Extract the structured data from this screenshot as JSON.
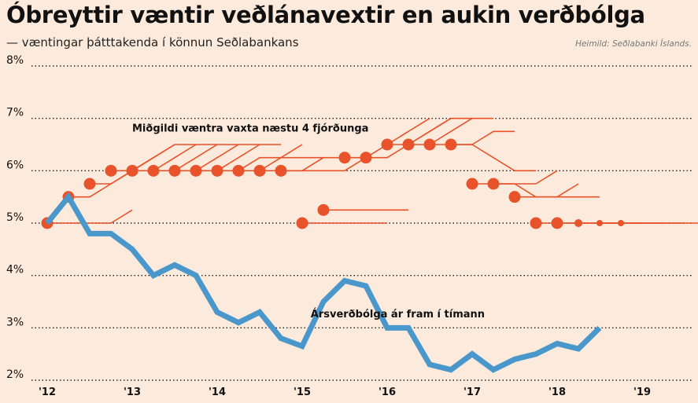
{
  "header": {
    "title": "Óbreyttir væntir veðlánavextir en aukin verðbólga",
    "subtitle": "— væntingar þátttakenda í könnun Seðlabankans",
    "source": "Heimild: Seðlabanki Íslands."
  },
  "colors": {
    "inflation": "#4a97cc",
    "rates": "#e8532b",
    "background": "#fcebdc",
    "grid": "#222222"
  },
  "chart_data": {
    "type": "line",
    "title": "Óbreyttir væntir veðlánavextir en aukin verðbólga",
    "subtitle": "— væntingar þátttakenda í könnun Seðlabankans",
    "ylim": [
      2,
      8
    ],
    "xlim": [
      2012,
      2019.7
    ],
    "y_ticks": [
      2,
      3,
      4,
      5,
      6,
      7,
      8
    ],
    "y_tick_labels": [
      "2%",
      "3%",
      "4%",
      "5%",
      "6%",
      "7%",
      "8%"
    ],
    "x_ticks": [
      2012,
      2013,
      2014,
      2015,
      2016,
      2017,
      2018,
      2019
    ],
    "x_tick_labels": [
      "'12",
      "'13",
      "'14",
      "'15",
      "'16",
      "'17",
      "'18",
      "'19"
    ],
    "grid": "horizontal dotted",
    "annotations": [
      {
        "text": "Miðgildi væntra vaxta næstu 4 fjórðunga",
        "x": 2013.0,
        "y": 6.75
      },
      {
        "text": "Ársverðbólga ár fram í tímann",
        "x": 2015.1,
        "y": 3.2
      }
    ],
    "series": [
      {
        "name": "Ársverðbólga ár fram í tímann",
        "x": [
          2012.0,
          2012.25,
          2012.5,
          2012.75,
          2013.0,
          2013.25,
          2013.5,
          2013.75,
          2014.0,
          2014.25,
          2014.5,
          2014.75,
          2015.0,
          2015.25,
          2015.5,
          2015.75,
          2016.0,
          2016.25,
          2016.5,
          2016.75,
          2017.0,
          2017.25,
          2017.5,
          2017.75,
          2018.0,
          2018.25,
          2018.5
        ],
        "values": [
          5.0,
          5.5,
          4.8,
          4.8,
          4.5,
          4.0,
          4.2,
          4.0,
          3.3,
          3.1,
          3.3,
          2.8,
          2.65,
          3.5,
          3.9,
          3.8,
          3.0,
          3.0,
          2.3,
          2.2,
          2.5,
          2.2,
          2.4,
          2.5,
          2.7,
          2.6,
          3.0
        ]
      },
      {
        "name": "Miðgildi væntra vaxta næstu 4 fjórðunga",
        "surveys": [
          {
            "x": 2012.0,
            "current": 5.0,
            "path": [
              5.0,
              5.0,
              5.0,
              5.25
            ]
          },
          {
            "x": 2012.25,
            "current": 5.5,
            "path": [
              5.5,
              5.75,
              6.0,
              6.25
            ]
          },
          {
            "x": 2012.5,
            "current": 5.75,
            "path": [
              5.75,
              6.0,
              6.25,
              6.5
            ]
          },
          {
            "x": 2012.75,
            "current": 6.0,
            "path": [
              6.0,
              6.25,
              6.5,
              6.5
            ]
          },
          {
            "x": 2013.0,
            "current": 6.0,
            "path": [
              6.0,
              6.25,
              6.5,
              6.5
            ]
          },
          {
            "x": 2013.25,
            "current": 6.0,
            "path": [
              6.0,
              6.25,
              6.5,
              6.5
            ]
          },
          {
            "x": 2013.5,
            "current": 6.0,
            "path": [
              6.0,
              6.25,
              6.5,
              6.5
            ]
          },
          {
            "x": 2013.75,
            "current": 6.0,
            "path": [
              6.0,
              6.25,
              6.5,
              6.5
            ]
          },
          {
            "x": 2014.0,
            "current": 6.0,
            "path": [
              6.0,
              6.25,
              6.25,
              6.5
            ]
          },
          {
            "x": 2014.25,
            "current": 6.0,
            "path": [
              6.0,
              6.25,
              6.25,
              6.25
            ]
          },
          {
            "x": 2014.5,
            "current": 6.0,
            "path": [
              6.0,
              6.0,
              6.25,
              6.25
            ]
          },
          {
            "x": 2014.75,
            "current": 6.0,
            "path": [
              6.0,
              6.0,
              6.0,
              6.25
            ]
          },
          {
            "x": 2015.0,
            "current": 5.0,
            "path": [
              5.0,
              5.0,
              5.0,
              5.0
            ]
          },
          {
            "x": 2015.25,
            "current": 5.25,
            "path": [
              5.25,
              5.25,
              5.25,
              5.25
            ]
          },
          {
            "x": 2015.5,
            "current": 6.25,
            "path": [
              6.25,
              6.5,
              6.75,
              7.0
            ]
          },
          {
            "x": 2015.75,
            "current": 6.25,
            "path": [
              6.25,
              6.5,
              6.75,
              7.0
            ]
          },
          {
            "x": 2016.0,
            "current": 6.5,
            "path": [
              6.5,
              6.75,
              7.0,
              7.0
            ]
          },
          {
            "x": 2016.25,
            "current": 6.5,
            "path": [
              6.5,
              6.75,
              7.0,
              7.0
            ]
          },
          {
            "x": 2016.5,
            "current": 6.5,
            "path": [
              6.5,
              6.5,
              6.75,
              6.75
            ]
          },
          {
            "x": 2016.75,
            "current": 6.5,
            "path": [
              6.5,
              6.25,
              6.0,
              6.0
            ]
          },
          {
            "x": 2017.0,
            "current": 5.75,
            "path": [
              5.75,
              5.75,
              5.75,
              6.0
            ]
          },
          {
            "x": 2017.25,
            "current": 5.75,
            "path": [
              5.75,
              5.5,
              5.5,
              5.75
            ]
          },
          {
            "x": 2017.5,
            "current": 5.5,
            "path": [
              5.5,
              5.5,
              5.5,
              5.5
            ]
          },
          {
            "x": 2017.75,
            "current": 5.0,
            "path": [
              5.0,
              5.0,
              5.0,
              5.0
            ]
          },
          {
            "x": 2018.0,
            "current": 5.0,
            "path": [
              5.0,
              5.0,
              5.0,
              5.0
            ]
          },
          {
            "x": 2018.25,
            "current": 5.0,
            "path": [
              5.0,
              5.0,
              5.0,
              5.0
            ]
          },
          {
            "x": 2018.5,
            "current": 5.0,
            "path": [
              5.0,
              5.0,
              5.0,
              5.0
            ]
          },
          {
            "x": 2018.75,
            "current": 5.0,
            "path": [
              5.0,
              5.0,
              5.0,
              5.0
            ]
          }
        ]
      }
    ]
  }
}
